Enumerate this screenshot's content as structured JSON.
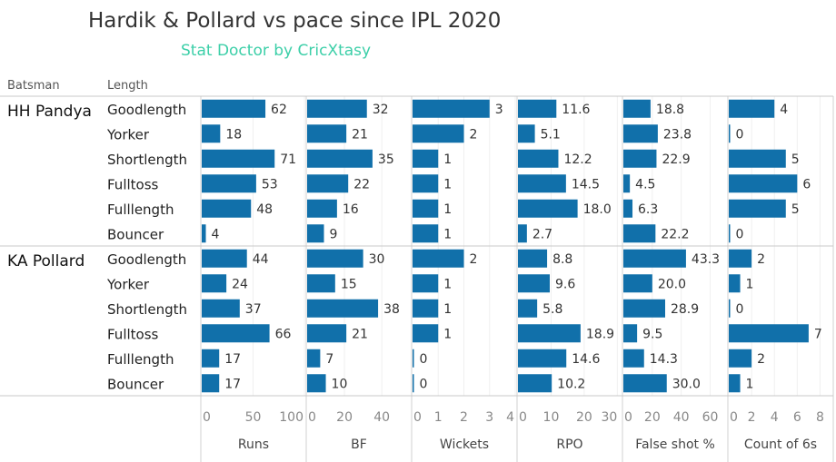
{
  "chart_data": {
    "type": "bar",
    "orientation": "horizontal",
    "title": "Hardik & Pollard vs pace since IPL 2020",
    "subtitle": "Stat Doctor by CricXtasy",
    "row_headers": [
      "Batsman",
      "Length"
    ],
    "bar_color": "#1170aa",
    "grid": true,
    "groups": [
      {
        "batsman": "HH Pandya",
        "lengths": [
          "Goodlength",
          "Yorker",
          "Shortlength",
          "Fulltoss",
          "Fulllength",
          "Bouncer"
        ]
      },
      {
        "batsman": "KA Pollard",
        "lengths": [
          "Goodlength",
          "Yorker",
          "Shortlength",
          "Fulltoss",
          "Fulllength",
          "Bouncer"
        ]
      }
    ],
    "measures": [
      {
        "name": "Runs",
        "domain": [
          0,
          100
        ],
        "ticks": [
          "0",
          "50",
          "100"
        ],
        "tick_values": [
          0,
          50,
          100
        ],
        "values": [
          [
            62,
            18,
            71,
            53,
            48,
            4
          ],
          [
            44,
            24,
            37,
            66,
            17,
            17
          ]
        ],
        "labels": [
          [
            "62",
            "18",
            "71",
            "53",
            "48",
            "4"
          ],
          [
            "44",
            "24",
            "37",
            "66",
            "17",
            "17"
          ]
        ]
      },
      {
        "name": "BF",
        "domain": [
          0,
          55
        ],
        "ticks": [
          "0",
          "20",
          "40"
        ],
        "tick_values": [
          0,
          20,
          40
        ],
        "values": [
          [
            32,
            21,
            35,
            22,
            16,
            9
          ],
          [
            30,
            15,
            38,
            21,
            7,
            10
          ]
        ],
        "labels": [
          [
            "32",
            "21",
            "35",
            "22",
            "16",
            "9"
          ],
          [
            "30",
            "15",
            "38",
            "21",
            "7",
            "10"
          ]
        ]
      },
      {
        "name": "Wickets",
        "domain": [
          0,
          4
        ],
        "ticks": [
          "0",
          "1",
          "2",
          "3",
          "4"
        ],
        "tick_values": [
          0,
          1,
          2,
          3,
          4
        ],
        "values": [
          [
            3,
            2,
            1,
            1,
            1,
            1
          ],
          [
            2,
            1,
            1,
            1,
            0,
            0
          ]
        ],
        "labels": [
          [
            "3",
            "2",
            "1",
            "1",
            "1",
            "1"
          ],
          [
            "2",
            "1",
            "1",
            "1",
            "0",
            "0"
          ]
        ]
      },
      {
        "name": "RPO",
        "domain": [
          0,
          31
        ],
        "ticks": [
          "0",
          "10",
          "20",
          "30"
        ],
        "tick_values": [
          0,
          10,
          20,
          30
        ],
        "values": [
          [
            11.6,
            5.1,
            12.2,
            14.5,
            18.0,
            2.7
          ],
          [
            8.8,
            9.6,
            5.8,
            18.9,
            14.6,
            10.2
          ]
        ],
        "labels": [
          [
            "11.6",
            "5.1",
            "12.2",
            "14.5",
            "18.0",
            "2.7"
          ],
          [
            "8.8",
            "9.6",
            "5.8",
            "18.9",
            "14.6",
            "10.2"
          ]
        ]
      },
      {
        "name": "False shot %",
        "domain": [
          0,
          71
        ],
        "ticks": [
          "0",
          "20",
          "40",
          "60"
        ],
        "tick_values": [
          0,
          20,
          40,
          60
        ],
        "values": [
          [
            18.8,
            23.8,
            22.9,
            4.5,
            6.3,
            22.2
          ],
          [
            43.3,
            20.0,
            28.9,
            9.5,
            14.3,
            30.0
          ]
        ],
        "labels": [
          [
            "18.8",
            "23.8",
            "22.9",
            "4.5",
            "6.3",
            "22.2"
          ],
          [
            "43.3",
            "20.0",
            "28.9",
            "9.5",
            "14.3",
            "30.0"
          ]
        ]
      },
      {
        "name": "Count of 6s",
        "domain": [
          0,
          9
        ],
        "ticks": [
          "0",
          "2",
          "4",
          "6",
          "8"
        ],
        "tick_values": [
          0,
          2,
          4,
          6,
          8
        ],
        "values": [
          [
            4,
            0,
            5,
            6,
            5,
            0
          ],
          [
            2,
            1,
            0,
            7,
            2,
            1
          ]
        ],
        "labels": [
          [
            "4",
            "0",
            "5",
            "6",
            "5",
            "0"
          ],
          [
            "2",
            "1",
            "0",
            "7",
            "2",
            "1"
          ]
        ]
      }
    ]
  }
}
